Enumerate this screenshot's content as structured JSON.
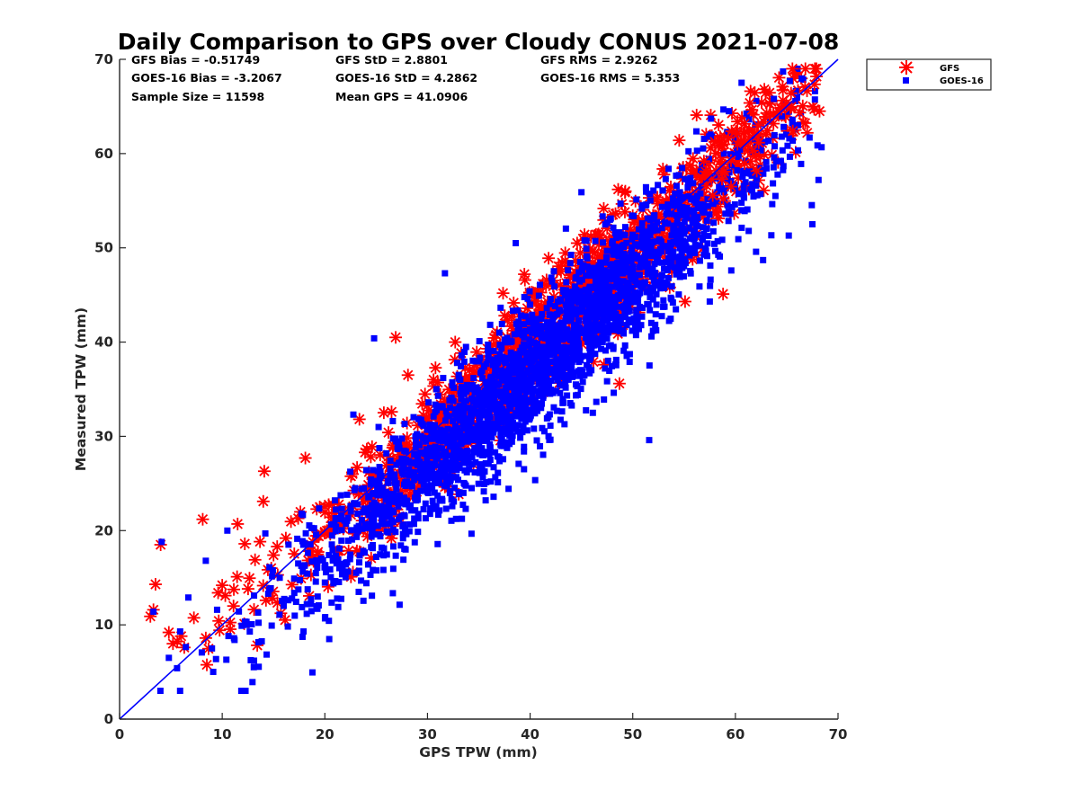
{
  "chart_data": {
    "type": "scatter",
    "title": "Daily Comparison to GPS over Cloudy CONUS 2021-07-08",
    "xlabel": "GPS TPW (mm)",
    "ylabel": "Measured TPW (mm)",
    "xlim": [
      0,
      70
    ],
    "ylim": [
      0,
      70
    ],
    "xticks": [
      0,
      10,
      20,
      30,
      40,
      50,
      60,
      70
    ],
    "yticks": [
      0,
      10,
      20,
      30,
      40,
      50,
      60,
      70
    ],
    "grid": false,
    "legend_position": "outside-top-right",
    "reference_line": {
      "name": "1:1 line",
      "x": [
        0,
        70
      ],
      "y": [
        0,
        70
      ],
      "color": "#0000ff"
    },
    "stats": {
      "gfs_bias": "GFS Bias = -0.51749",
      "goes_bias": "GOES-16 Bias = -3.2067",
      "sample_size": "Sample Size = 11598",
      "gfs_std": "GFS StD = 2.8801",
      "goes_std": "GOES-16 StD = 4.2862",
      "mean_gps": "Mean GPS = 41.0906",
      "gfs_rms": "GFS RMS = 2.9262",
      "goes_rms": "GOES-16 RMS = 5.353"
    },
    "series": [
      {
        "name": "GFS",
        "marker": "asterisk",
        "color": "#ff0000",
        "bias": -0.51749,
        "std": 2.8801,
        "x": [
          3.0,
          3.5,
          3.3,
          4.0,
          4.8,
          5.2,
          6.0,
          6.3,
          8.1,
          8.4,
          9.6,
          10.0,
          10.3,
          11.1,
          11.5,
          12.2,
          13.2,
          14.0,
          14.1,
          15.0,
          16.2,
          17.4,
          18.1,
          19.5,
          21.0,
          22.7,
          24.6,
          26.5,
          26.9,
          28.1,
          30.0,
          31.4,
          32.7,
          34.2,
          36.1,
          38.5,
          40.1,
          41.8,
          43.5,
          45.3,
          47.2,
          48.7,
          50.2,
          52.1,
          53.6,
          55.1,
          56.2,
          57.6,
          58.8,
          60.2,
          61.7,
          62.8,
          63.5,
          64.6,
          65.5,
          66.1,
          67.0,
          68.2
        ],
        "y": [
          10.9,
          14.3,
          11.6,
          18.5,
          9.2,
          8.0,
          8.8,
          7.6,
          21.2,
          8.6,
          13.4,
          14.2,
          13.1,
          12.0,
          20.7,
          18.6,
          16.9,
          23.1,
          26.3,
          17.4,
          19.2,
          21.3,
          27.7,
          22.5,
          21.8,
          26.0,
          28.9,
          32.6,
          40.5,
          36.5,
          26.1,
          32.1,
          40.0,
          29.8,
          35.5,
          40.2,
          38.5,
          48.9,
          44.0,
          51.4,
          37.6,
          35.6,
          53.0,
          49.6,
          45.8,
          44.3,
          58.2,
          60.6,
          45.1,
          63.4,
          62.5,
          59.9,
          65.5,
          67.1,
          61.9,
          66.7,
          62.2,
          64.5
        ]
      },
      {
        "name": "GOES-16",
        "marker": "square",
        "color": "#0000ff",
        "bias": -3.2067,
        "std": 4.2862,
        "x": [
          3.3,
          4.1,
          4.8,
          5.6,
          5.9,
          6.7,
          8.4,
          9.0,
          9.5,
          10.5,
          11.2,
          11.9,
          13.1,
          13.5,
          14.2,
          15.6,
          16.8,
          17.9,
          19.3,
          20.4,
          21.6,
          23.3,
          25.5,
          27.2,
          28.9,
          30.1,
          31.9,
          33.5,
          35.0,
          36.2,
          37.8,
          39.4,
          40.9,
          42.6,
          44.2,
          45.5,
          47.3,
          48.5,
          50.9,
          51.6,
          53.8,
          55.3,
          56.5,
          57.8,
          59.6,
          60.9,
          62.7,
          63.9,
          65.2,
          66.4,
          67.5,
          68.1,
          38.6,
          31.7,
          24.8,
          45.0
        ],
        "y": [
          11.4,
          18.8,
          6.5,
          5.4,
          9.3,
          12.9,
          16.8,
          7.5,
          11.6,
          20.0,
          8.4,
          9.9,
          6.2,
          11.3,
          19.7,
          15.0,
          12.8,
          18.5,
          13.0,
          17.4,
          21.6,
          13.5,
          25.8,
          29.4,
          23.2,
          33.6,
          24.7,
          24.0,
          30.8,
          38.1,
          31.6,
          28.4,
          34.3,
          32.7,
          38.2,
          49.1,
          37.2,
          44.8,
          42.7,
          29.6,
          48.5,
          53.2,
          45.9,
          57.4,
          47.6,
          53.9,
          48.7,
          55.5,
          51.3,
          58.9,
          52.5,
          57.2,
          50.5,
          47.3,
          40.4,
          55.9
        ]
      }
    ]
  }
}
